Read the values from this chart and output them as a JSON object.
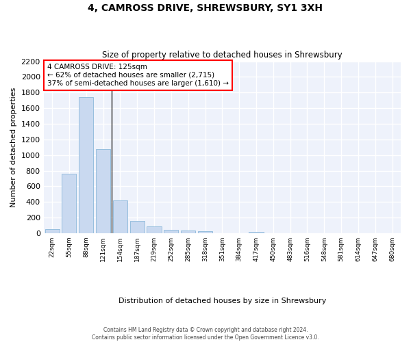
{
  "title": "4, CAMROSS DRIVE, SHREWSBURY, SY1 3XH",
  "subtitle": "Size of property relative to detached houses in Shrewsbury",
  "xlabel": "Distribution of detached houses by size in Shrewsbury",
  "ylabel": "Number of detached properties",
  "bar_color": "#c9d9f0",
  "bar_edge_color": "#7bafd4",
  "background_color": "#ffffff",
  "plot_bg_color": "#eef2fb",
  "grid_color": "#ffffff",
  "categories": [
    "22sqm",
    "55sqm",
    "88sqm",
    "121sqm",
    "154sqm",
    "187sqm",
    "219sqm",
    "252sqm",
    "285sqm",
    "318sqm",
    "351sqm",
    "384sqm",
    "417sqm",
    "450sqm",
    "483sqm",
    "516sqm",
    "548sqm",
    "581sqm",
    "614sqm",
    "647sqm",
    "680sqm"
  ],
  "values": [
    55,
    760,
    1740,
    1075,
    420,
    155,
    85,
    45,
    35,
    28,
    0,
    0,
    18,
    0,
    0,
    0,
    0,
    0,
    0,
    0,
    0
  ],
  "ylim": [
    0,
    2200
  ],
  "yticks": [
    0,
    200,
    400,
    600,
    800,
    1000,
    1200,
    1400,
    1600,
    1800,
    2000,
    2200
  ],
  "property_line_x": 3,
  "annotation_title": "4 CAMROSS DRIVE: 125sqm",
  "annotation_line1": "← 62% of detached houses are smaller (2,715)",
  "annotation_line2": "37% of semi-detached houses are larger (1,610) →",
  "footer_line1": "Contains HM Land Registry data © Crown copyright and database right 2024.",
  "footer_line2": "Contains public sector information licensed under the Open Government Licence v3.0."
}
